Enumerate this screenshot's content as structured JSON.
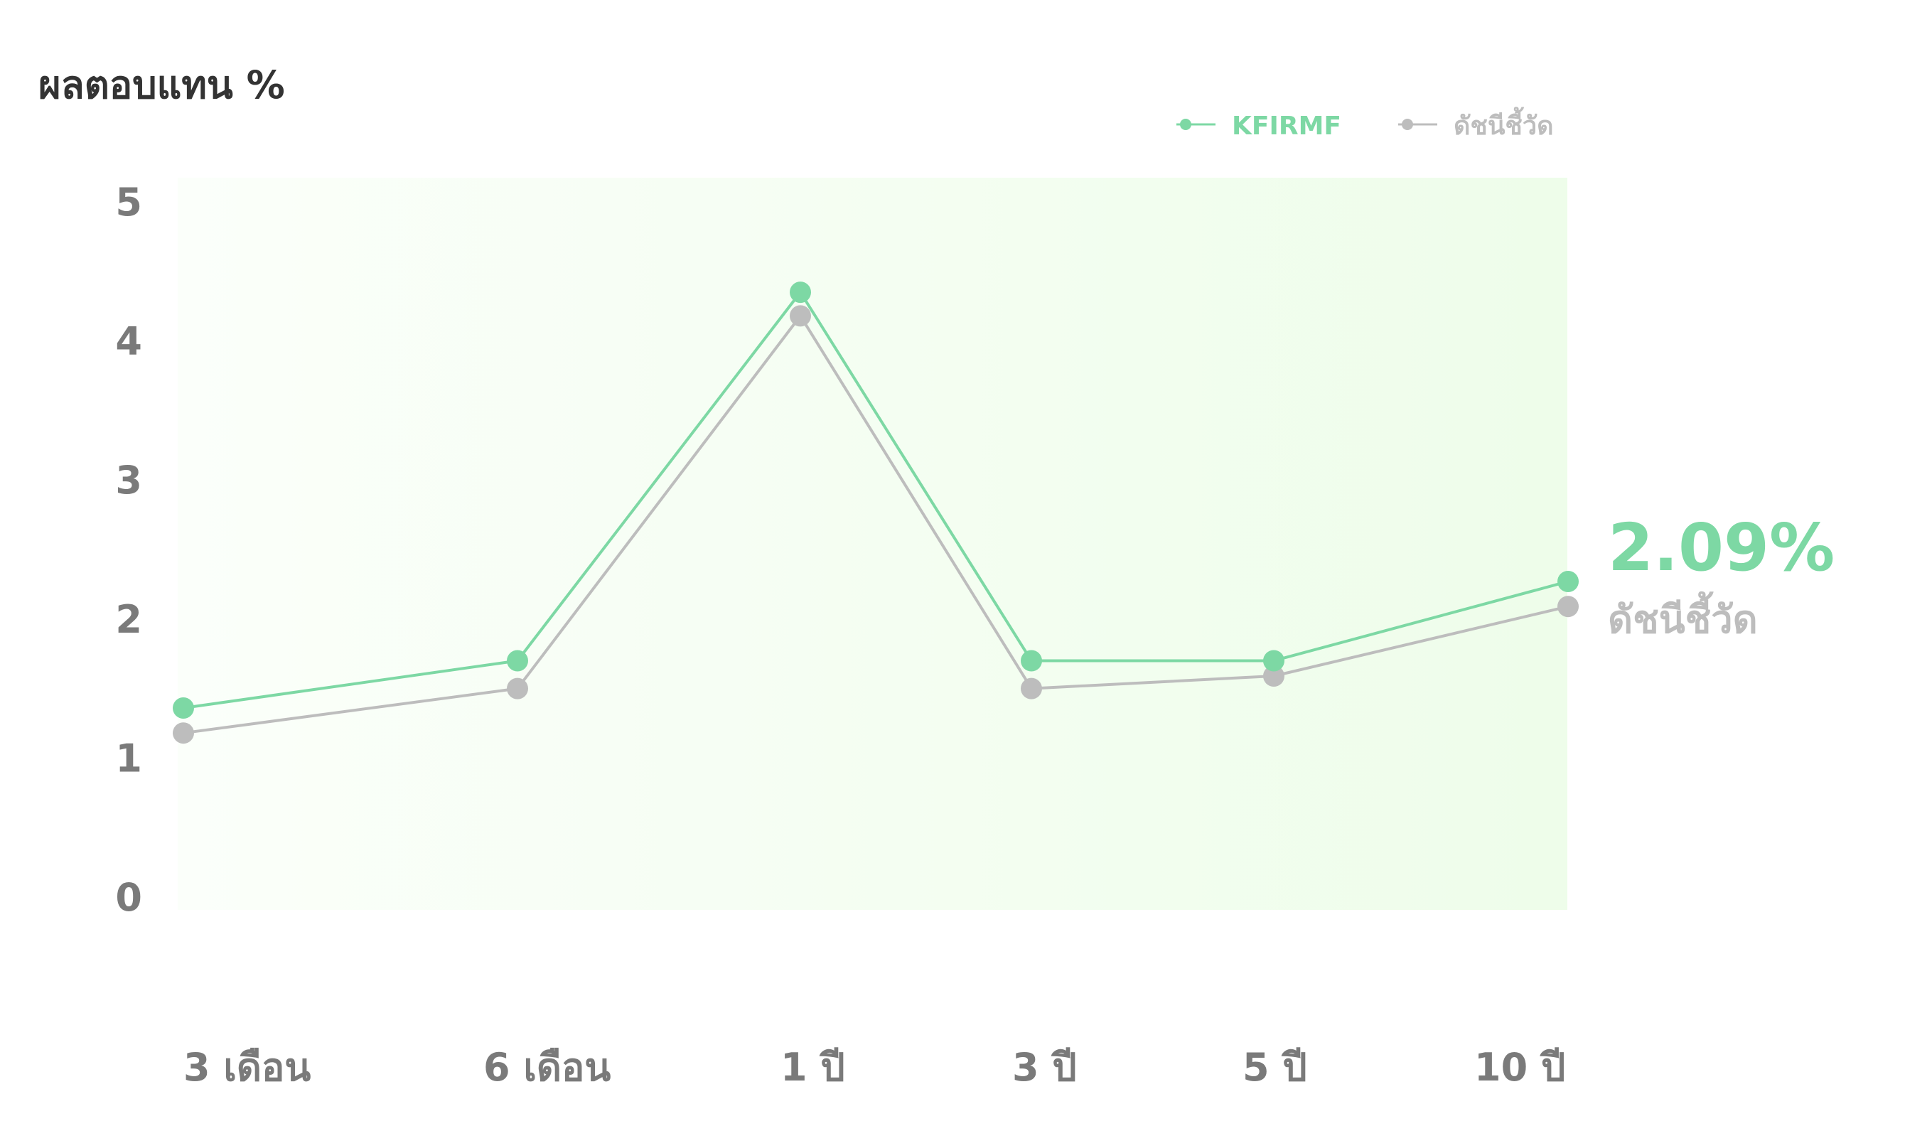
{
  "colors": {
    "fund": "#7dd8a4",
    "benchmark": "#bdbdbd",
    "plot_bg_start": "#fbfffa",
    "plot_bg_end": "#eefdea",
    "text_dark": "#333333",
    "text_axis": "#7a7a7a"
  },
  "chart_data": {
    "type": "line",
    "title": "ผลตอบแทน %",
    "xlabel": "",
    "ylabel": "",
    "categories": [
      "3 เดือน",
      "6 เดือน",
      "1 ปี",
      "3 ปี",
      "5 ปี",
      "10 ปี"
    ],
    "ylim": [
      0,
      5
    ],
    "yticks": [
      "0",
      "1",
      "2",
      "3",
      "4",
      "5"
    ],
    "legend_position": "top-right",
    "grid": false,
    "series": [
      {
        "name": "KFIRMF",
        "color": "#7dd8a4",
        "values": [
          1.36,
          1.7,
          4.35,
          1.7,
          1.7,
          2.27
        ]
      },
      {
        "name": "ดัชนีชี้วัด",
        "color": "#bdbdbd",
        "values": [
          1.18,
          1.5,
          4.18,
          1.5,
          1.59,
          2.09
        ]
      }
    ],
    "annotation": {
      "value_text": "2.09%",
      "label_text": "ดัชนีชี้วัด"
    }
  }
}
